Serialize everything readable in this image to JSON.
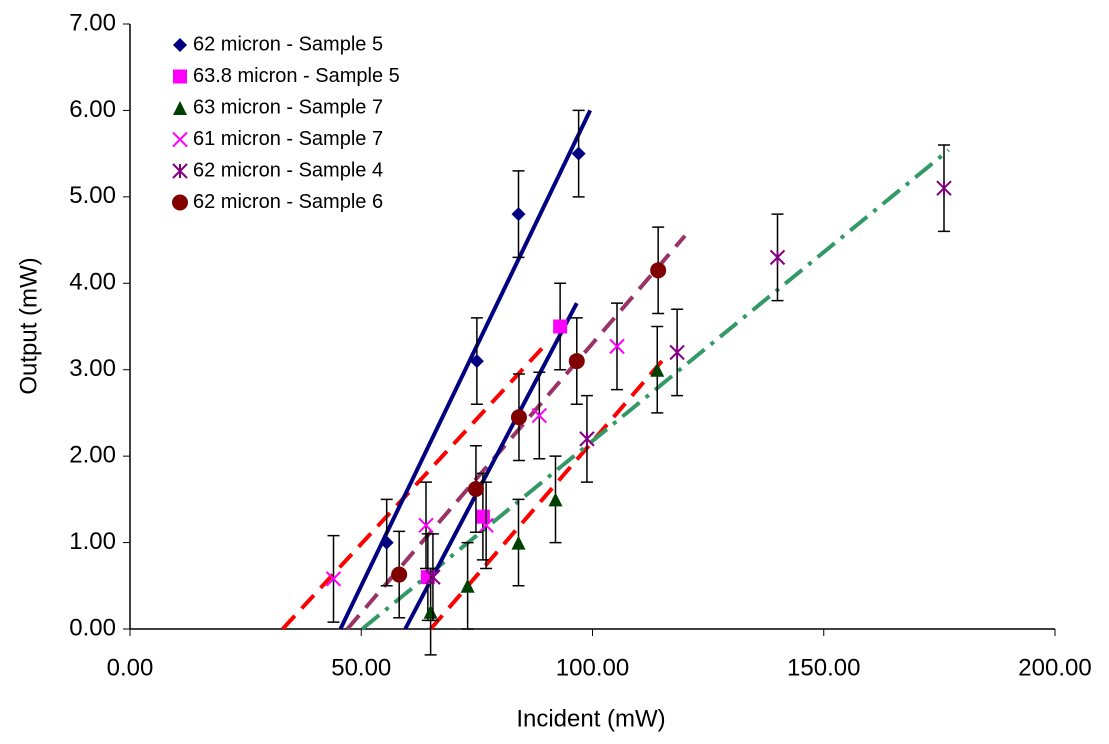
{
  "chart_data": {
    "type": "scatter",
    "xlabel": "Incident (mW)",
    "ylabel": "Output (mW)",
    "xlim": [
      0,
      200
    ],
    "ylim": [
      0,
      7
    ],
    "xticks": [
      {
        "value": 0,
        "label": "0.00"
      },
      {
        "value": 50,
        "label": "50.00"
      },
      {
        "value": 100,
        "label": "100.00"
      },
      {
        "value": 150,
        "label": "150.00"
      },
      {
        "value": 200,
        "label": "200.00"
      }
    ],
    "yticks": [
      {
        "value": 0,
        "label": "0.00"
      },
      {
        "value": 1,
        "label": "1.00"
      },
      {
        "value": 2,
        "label": "2.00"
      },
      {
        "value": 3,
        "label": "3.00"
      },
      {
        "value": 4,
        "label": "4.00"
      },
      {
        "value": 5,
        "label": "5.00"
      },
      {
        "value": 6,
        "label": "6.00"
      },
      {
        "value": 7,
        "label": "7.00"
      }
    ],
    "legend": "upper left",
    "series": [
      {
        "name": "62 micron - Sample 5",
        "color": "#000080",
        "marker": "diamond",
        "x": [
          55.5,
          75,
          84,
          97
        ],
        "values": [
          1.0,
          3.1,
          4.8,
          5.5
        ],
        "yerr": 0.5
      },
      {
        "name": "63.8 micron - Sample 5",
        "color": "#ff00ff",
        "marker": "square",
        "x": [
          64.4,
          76.3,
          93
        ],
        "values": [
          0.6,
          1.3,
          3.5
        ],
        "yerr": 0.5
      },
      {
        "name": "63 micron - Sample 7",
        "color": "#004000",
        "marker": "triangle",
        "x": [
          65,
          73,
          84,
          92,
          114
        ],
        "values": [
          0.2,
          0.5,
          1.0,
          1.5,
          3.0
        ],
        "yerr": 0.5
      },
      {
        "name": "61 micron - Sample 7",
        "color": "#ff00ff",
        "marker": "x",
        "x": [
          44,
          64,
          77,
          88.5,
          105.3
        ],
        "values": [
          0.58,
          1.2,
          1.2,
          2.47,
          3.27
        ],
        "yerr": 0.5
      },
      {
        "name": "62 micron - Sample 4",
        "color": "#800080",
        "marker": "asterisk",
        "x": [
          65.5,
          98.8,
          118.3,
          140,
          176
        ],
        "values": [
          0.6,
          2.2,
          3.2,
          4.3,
          5.1
        ],
        "yerr": 0.5
      },
      {
        "name": "62 micron - Sample 6",
        "color": "#800000",
        "marker": "circle",
        "x": [
          58.2,
          74.8,
          84.1,
          96.6,
          114.2
        ],
        "values": [
          0.63,
          1.62,
          2.45,
          3.1,
          4.15
        ],
        "yerr": 0.5
      }
    ],
    "trendlines": [
      {
        "color": "#ff0000",
        "dash": "18 10",
        "x": [
          33,
          90
        ],
        "values": [
          0,
          3.3
        ]
      },
      {
        "color": "#ff0000",
        "dash": "18 10",
        "x": [
          65,
          115
        ],
        "values": [
          0,
          3.1
        ]
      },
      {
        "color": "#993366",
        "dash": "18 10",
        "x": [
          47,
          120
        ],
        "values": [
          0,
          4.55
        ]
      },
      {
        "color": "#339966",
        "dash": "22 8 4 8",
        "x": [
          50.2,
          177
        ],
        "values": [
          0,
          5.54
        ]
      },
      {
        "color": "#000080",
        "dash": "none",
        "x": [
          45.5,
          99.5
        ],
        "values": [
          0,
          6.0
        ]
      },
      {
        "color": "#000080",
        "dash": "none",
        "x": [
          59.5,
          96.6
        ],
        "values": [
          0,
          3.77
        ]
      }
    ]
  }
}
